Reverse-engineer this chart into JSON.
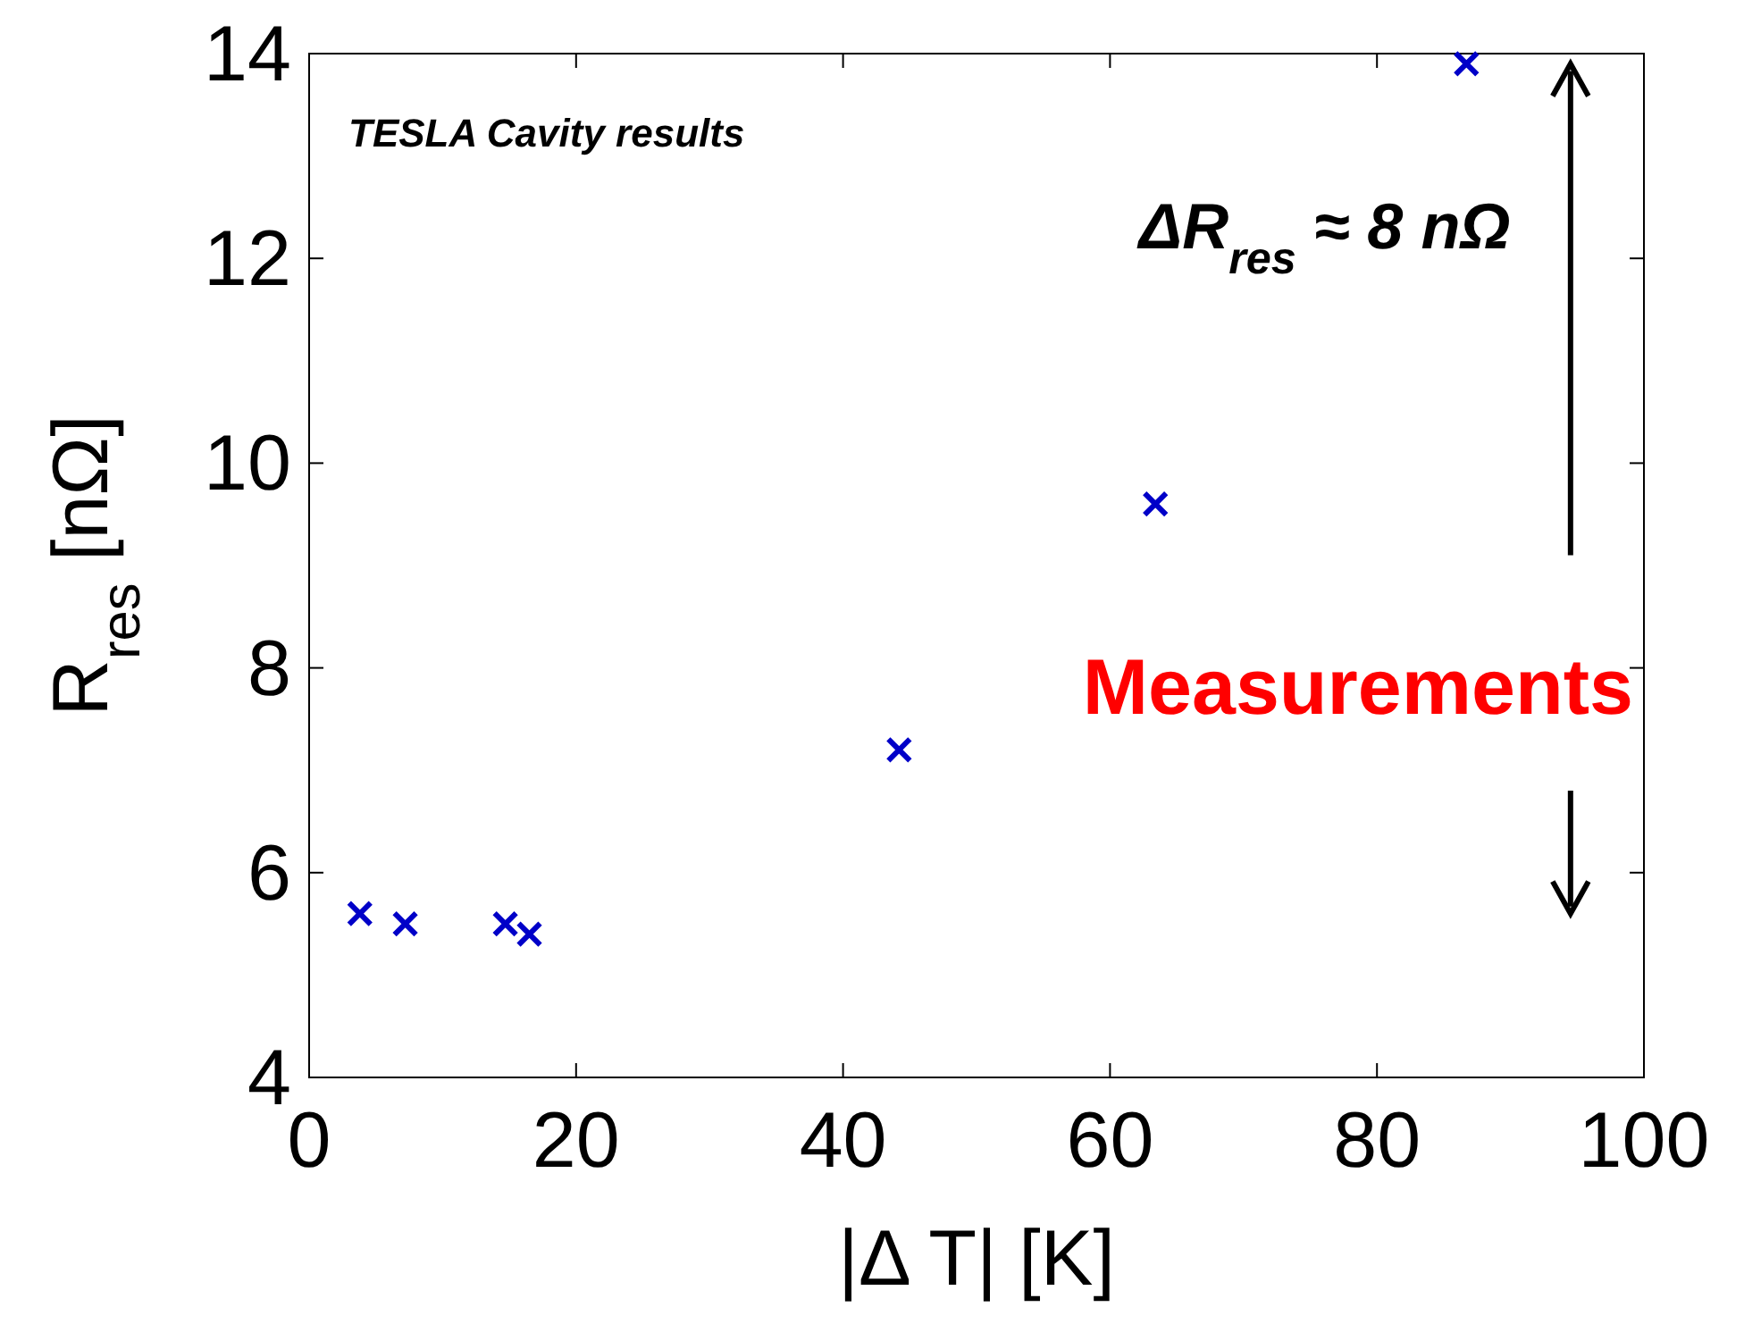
{
  "chart_data": {
    "type": "scatter",
    "xlabel": "|Δ T| [K]",
    "ylabel": "R$_{res}$ [nΩ]",
    "x": [
      3.8,
      7.2,
      14.7,
      16.5,
      44.2,
      63.4,
      86.7
    ],
    "series": [
      {
        "color": "#0000c8",
        "values": [
          5.6,
          5.5,
          5.5,
          5.4,
          7.2,
          9.6,
          13.9
        ]
      }
    ],
    "xlim": [
      0,
      100
    ],
    "xticks": [
      0,
      20,
      40,
      60,
      80,
      100
    ],
    "ylim": [
      4,
      14
    ],
    "yticks": [
      4,
      6,
      8,
      10,
      12,
      14
    ],
    "marker": "cross",
    "grid": false,
    "annotations": [
      "TESLA Cavity results",
      "ΔR$_{res}$ ≈ 8 nΩ",
      "Measurements"
    ]
  }
}
